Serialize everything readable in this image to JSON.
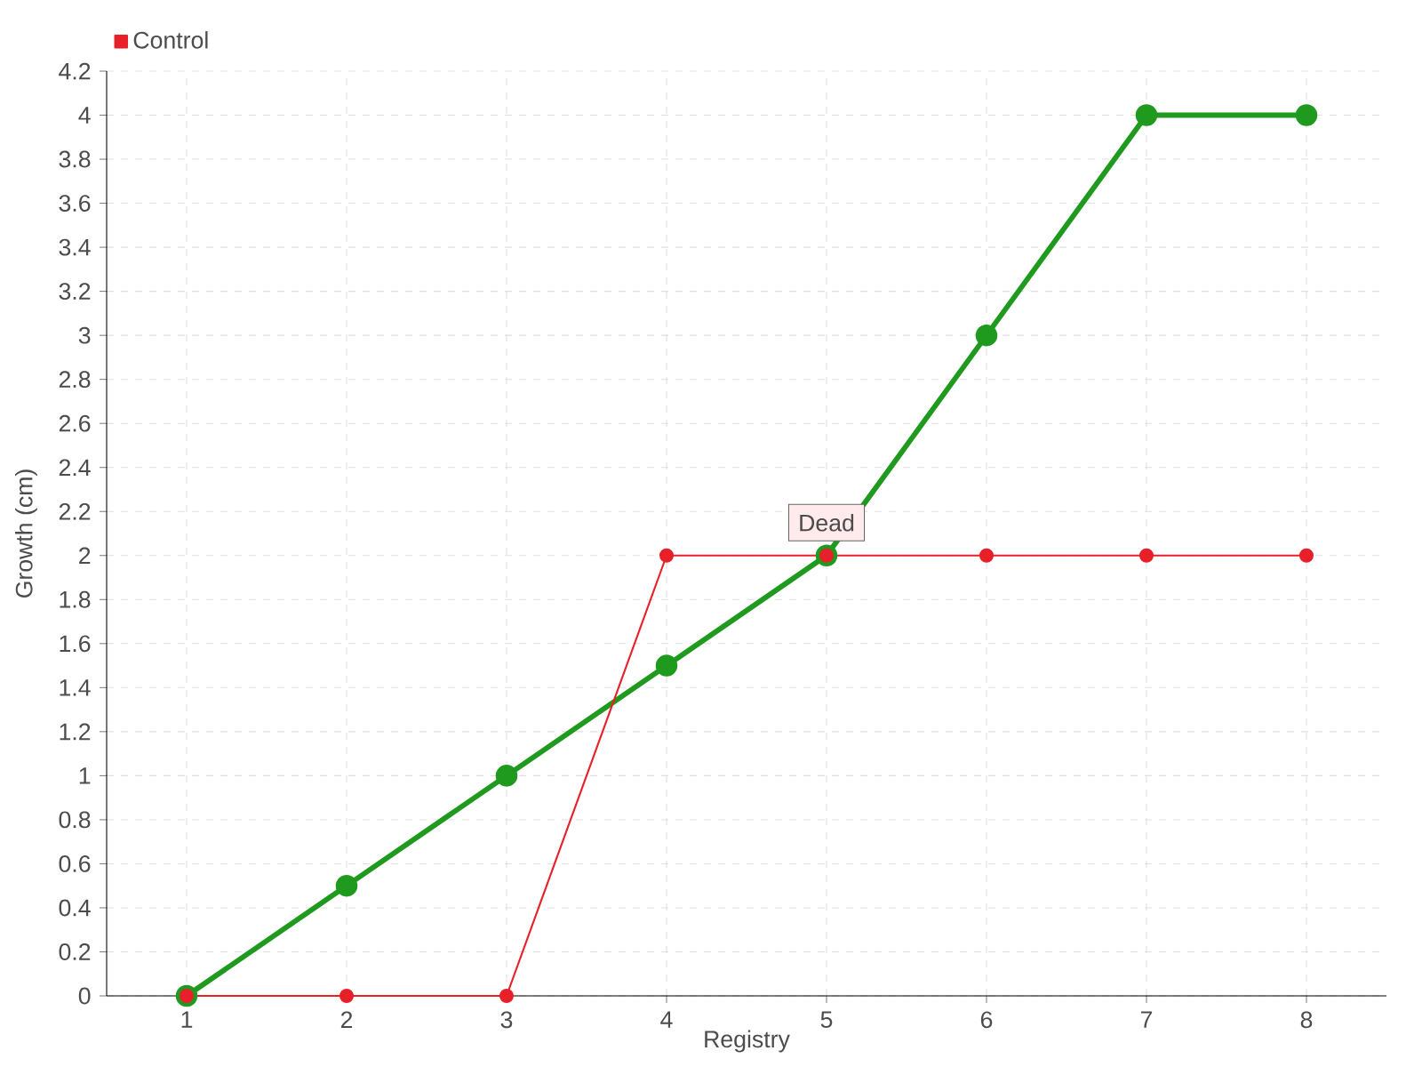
{
  "chart_data": {
    "type": "line",
    "xlabel": "Registry",
    "ylabel": "Growth (cm)",
    "x": [
      1,
      2,
      3,
      4,
      5,
      6,
      7,
      8
    ],
    "xlim": [
      0.5,
      8.5
    ],
    "xticks": [
      1,
      2,
      3,
      4,
      5,
      6,
      7,
      8
    ],
    "ylim": [
      0,
      4.2
    ],
    "yticks": [
      0,
      0.2,
      0.4,
      0.6,
      0.8,
      1,
      1.2,
      1.4,
      1.6,
      1.8,
      2,
      2.2,
      2.4,
      2.6,
      2.8,
      3,
      3.2,
      3.4,
      3.6,
      3.8,
      4,
      4.2
    ],
    "series": [
      {
        "color": "#1f9a1f",
        "values": [
          0,
          0.5,
          1,
          1.5,
          2,
          3,
          4,
          4
        ]
      },
      {
        "name": "Control",
        "color": "#e8202a",
        "values": [
          0,
          0,
          0,
          2,
          2,
          2,
          2,
          2
        ]
      }
    ],
    "annotations": [
      {
        "text": "Dead",
        "x": 5,
        "y": 2
      }
    ],
    "grid": true,
    "legend": "top left",
    "marker": "circle",
    "line_style": "solid"
  }
}
